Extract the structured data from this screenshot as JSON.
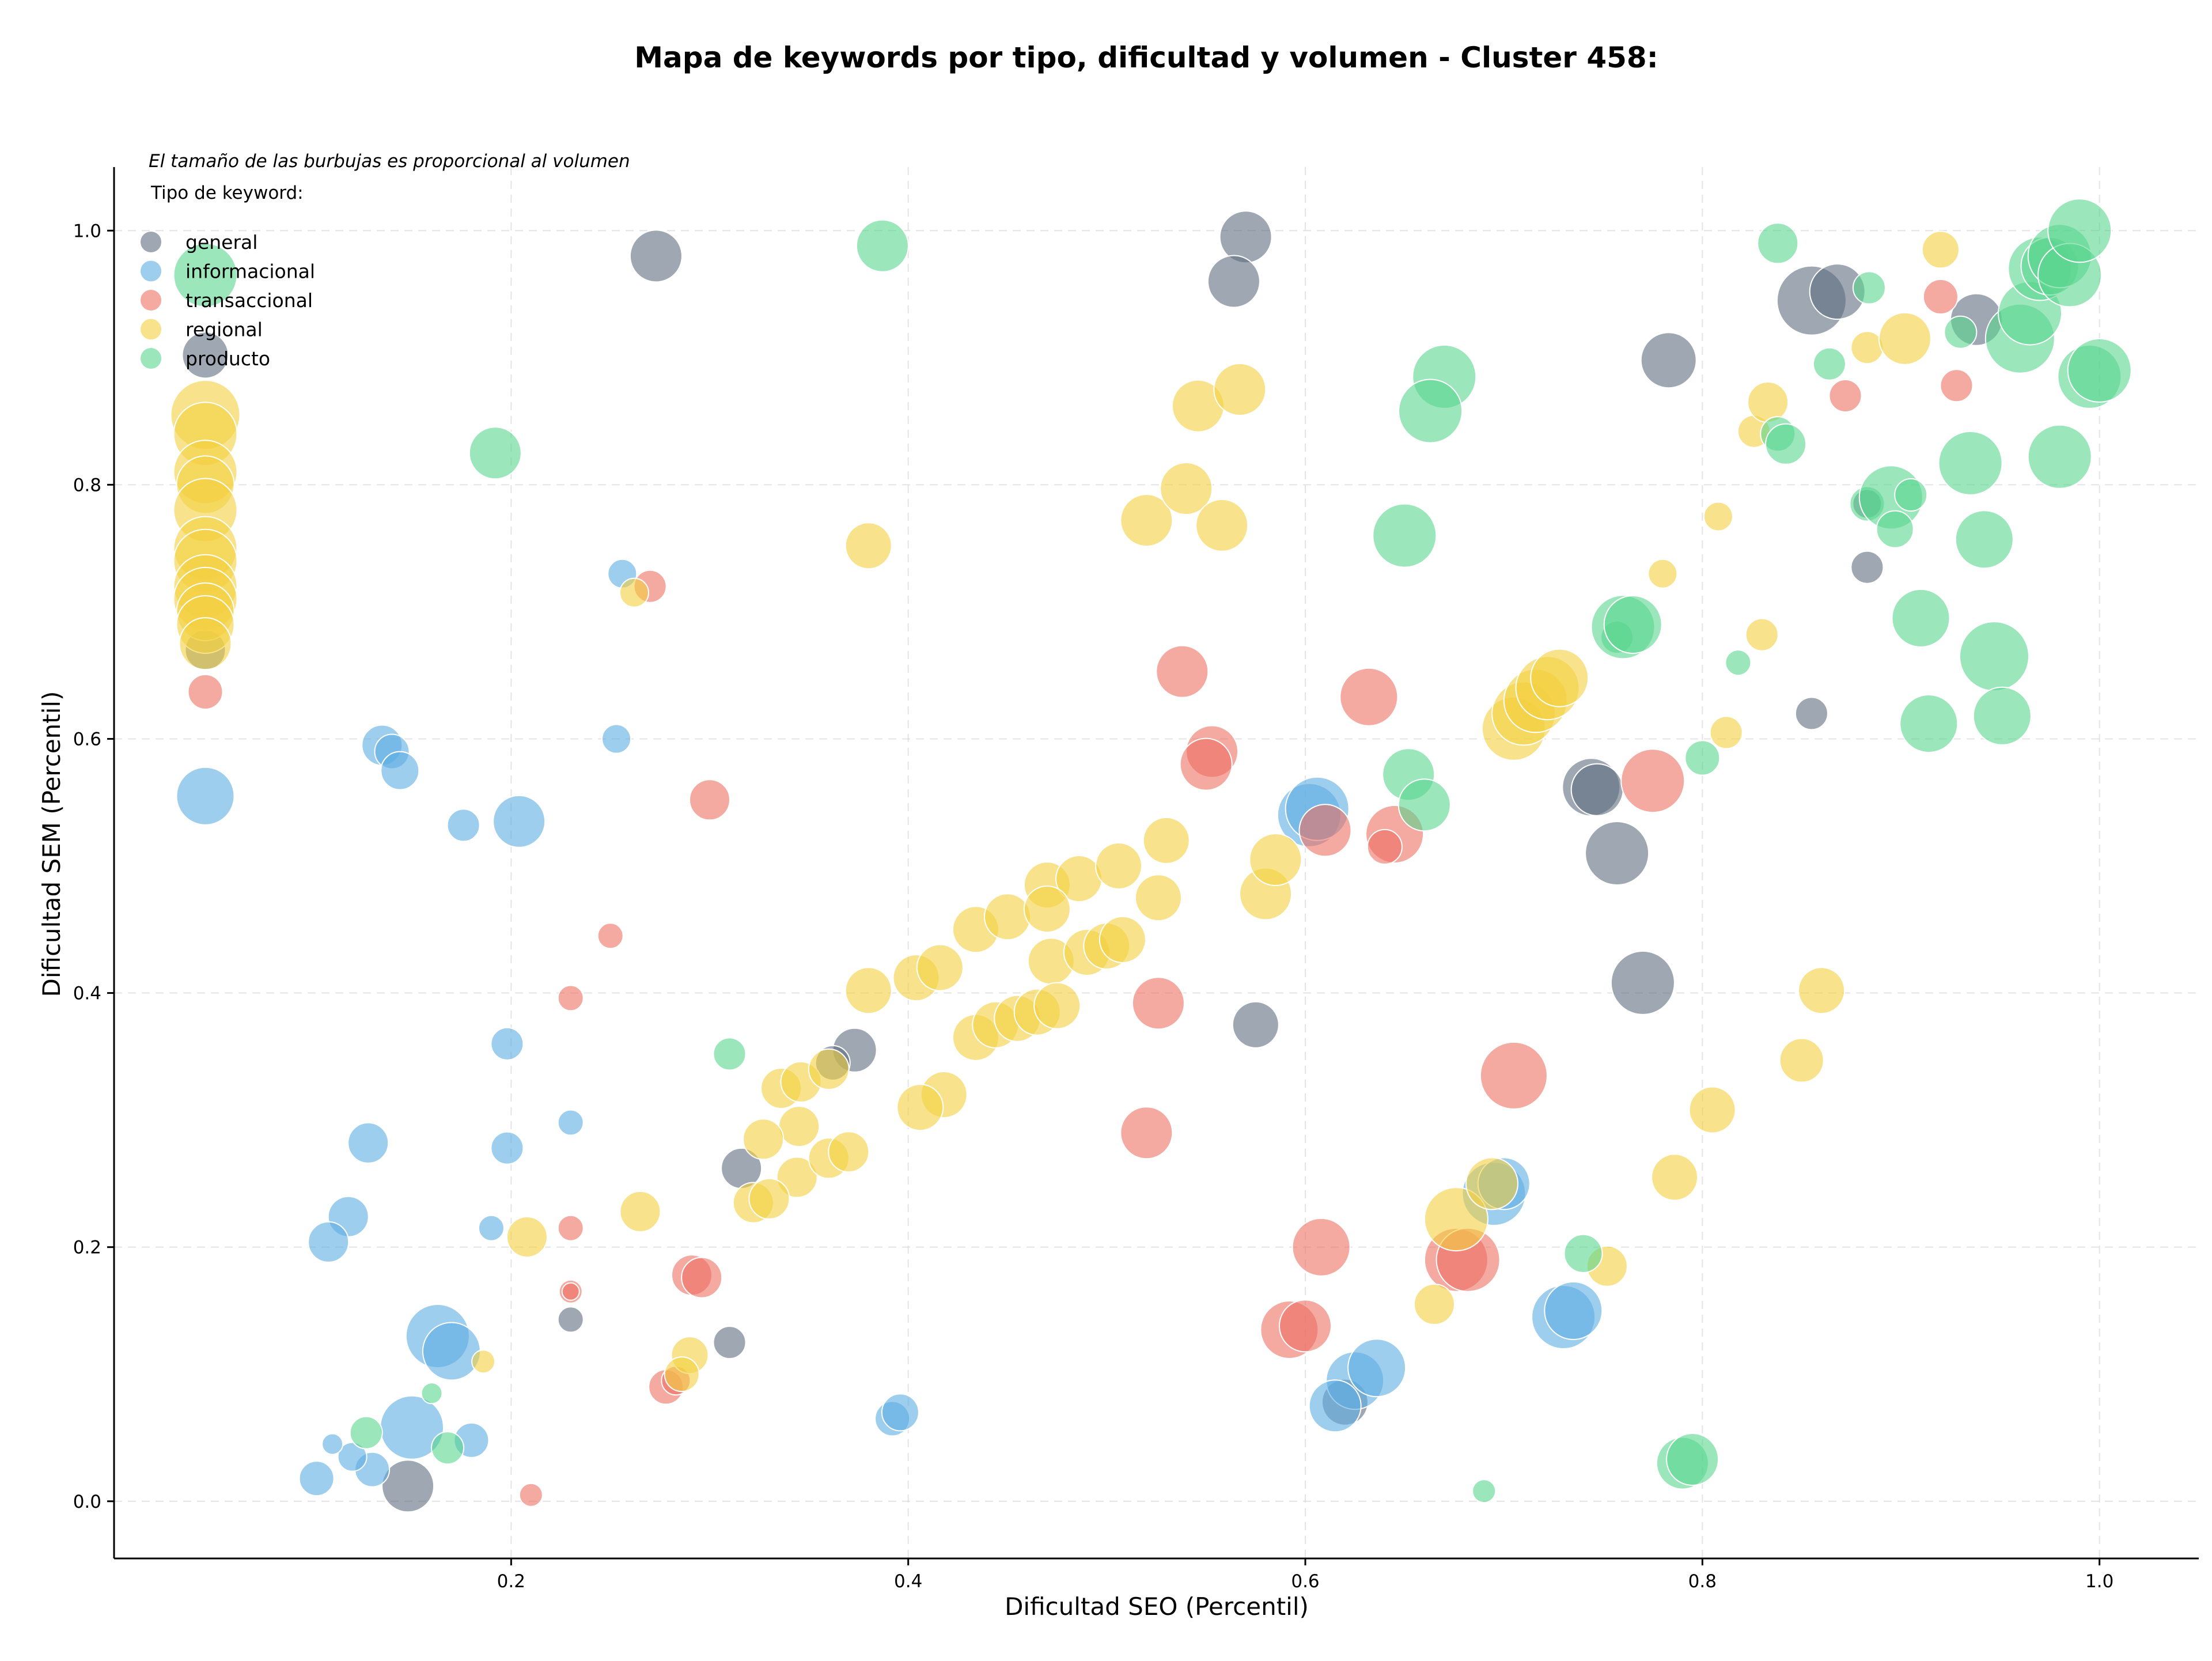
{
  "chart_data": {
    "type": "scatter",
    "title": "Mapa de keywords por tipo, dificultad y volumen - Cluster 458:",
    "xlabel": "Dificultad SEO (Percentil)",
    "ylabel": "Dificultad SEM (Percentil)",
    "xlim": [
      -0.0,
      1.05
    ],
    "ylim": [
      -0.045,
      1.05
    ],
    "xticks": [
      "0.2",
      "0.4",
      "0.6",
      "0.8",
      "1.0"
    ],
    "yticks": [
      "0.0",
      "0.2",
      "0.4",
      "0.6",
      "0.8",
      "1.0"
    ],
    "grid": true,
    "legend_position": "top-left",
    "note": "El tamaño de las burbujas es proporcional al volumen",
    "legend_title": "Tipo de keyword:",
    "series": [
      {
        "name": "general",
        "color": "#5d6d7e",
        "points": [
          [
            0.273,
            0.98,
            45
          ],
          [
            0.57,
            0.995,
            45
          ],
          [
            0.564,
            0.96,
            45
          ],
          [
            0.046,
            0.902,
            40
          ],
          [
            0.046,
            0.67,
            35
          ],
          [
            0.373,
            0.355,
            38
          ],
          [
            0.362,
            0.345,
            30
          ],
          [
            0.316,
            0.262,
            35
          ],
          [
            0.23,
            0.143,
            22
          ],
          [
            0.31,
            0.125,
            28
          ],
          [
            0.148,
            0.012,
            45
          ],
          [
            0.575,
            0.375,
            40
          ],
          [
            0.744,
            0.562,
            50
          ],
          [
            0.747,
            0.56,
            45
          ],
          [
            0.757,
            0.51,
            55
          ],
          [
            0.77,
            0.408,
            55
          ],
          [
            0.783,
            0.898,
            48
          ],
          [
            0.855,
            0.945,
            60
          ],
          [
            0.868,
            0.952,
            48
          ],
          [
            0.938,
            0.93,
            45
          ],
          [
            0.883,
            0.785,
            25
          ],
          [
            0.883,
            0.735,
            28
          ],
          [
            0.855,
            0.62,
            28
          ],
          [
            0.62,
            0.078,
            40
          ]
        ]
      },
      {
        "name": "informacional",
        "color": "#5dade2",
        "points": [
          [
            0.046,
            0.555,
            50
          ],
          [
            0.135,
            0.595,
            35
          ],
          [
            0.14,
            0.59,
            30
          ],
          [
            0.144,
            0.575,
            33
          ],
          [
            0.176,
            0.532,
            28
          ],
          [
            0.204,
            0.535,
            45
          ],
          [
            0.256,
            0.73,
            25
          ],
          [
            0.253,
            0.6,
            25
          ],
          [
            0.198,
            0.36,
            28
          ],
          [
            0.198,
            0.278,
            28
          ],
          [
            0.23,
            0.298,
            22
          ],
          [
            0.19,
            0.215,
            22
          ],
          [
            0.128,
            0.282,
            35
          ],
          [
            0.118,
            0.224,
            35
          ],
          [
            0.108,
            0.204,
            35
          ],
          [
            0.163,
            0.13,
            55
          ],
          [
            0.17,
            0.118,
            50
          ],
          [
            0.15,
            0.058,
            55
          ],
          [
            0.18,
            0.048,
            30
          ],
          [
            0.13,
            0.025,
            30
          ],
          [
            0.12,
            0.035,
            25
          ],
          [
            0.102,
            0.018,
            30
          ],
          [
            0.11,
            0.045,
            18
          ],
          [
            0.392,
            0.065,
            30
          ],
          [
            0.396,
            0.07,
            32
          ],
          [
            0.602,
            0.54,
            55
          ],
          [
            0.606,
            0.545,
            55
          ],
          [
            0.625,
            0.095,
            50
          ],
          [
            0.636,
            0.105,
            50
          ],
          [
            0.615,
            0.075,
            45
          ],
          [
            0.695,
            0.242,
            55
          ],
          [
            0.7,
            0.25,
            45
          ],
          [
            0.73,
            0.145,
            55
          ],
          [
            0.735,
            0.15,
            50
          ]
        ]
      },
      {
        "name": "transaccional",
        "color": "#ec7063",
        "points": [
          [
            0.046,
            0.637,
            30
          ],
          [
            0.27,
            0.72,
            28
          ],
          [
            0.3,
            0.552,
            35
          ],
          [
            0.23,
            0.396,
            22
          ],
          [
            0.25,
            0.445,
            22
          ],
          [
            0.23,
            0.215,
            22
          ],
          [
            0.23,
            0.165,
            20
          ],
          [
            0.23,
            0.165,
            15
          ],
          [
            0.21,
            0.005,
            20
          ],
          [
            0.291,
            0.178,
            35
          ],
          [
            0.296,
            0.176,
            35
          ],
          [
            0.278,
            0.09,
            30
          ],
          [
            0.283,
            0.095,
            25
          ],
          [
            0.538,
            0.653,
            45
          ],
          [
            0.553,
            0.59,
            45
          ],
          [
            0.55,
            0.58,
            45
          ],
          [
            0.526,
            0.392,
            45
          ],
          [
            0.52,
            0.29,
            45
          ],
          [
            0.632,
            0.633,
            50
          ],
          [
            0.61,
            0.528,
            45
          ],
          [
            0.645,
            0.525,
            50
          ],
          [
            0.64,
            0.515,
            30
          ],
          [
            0.608,
            0.2,
            50
          ],
          [
            0.592,
            0.135,
            50
          ],
          [
            0.6,
            0.138,
            45
          ],
          [
            0.705,
            0.335,
            58
          ],
          [
            0.676,
            0.19,
            55
          ],
          [
            0.682,
            0.19,
            55
          ],
          [
            0.775,
            0.567,
            55
          ],
          [
            0.92,
            0.948,
            30
          ],
          [
            0.928,
            0.878,
            28
          ],
          [
            0.872,
            0.87,
            28
          ]
        ]
      },
      {
        "name": "regional",
        "color": "#f4d03f",
        "points": [
          [
            0.046,
            0.855,
            60
          ],
          [
            0.046,
            0.84,
            55
          ],
          [
            0.046,
            0.81,
            55
          ],
          [
            0.046,
            0.8,
            50
          ],
          [
            0.046,
            0.78,
            55
          ],
          [
            0.046,
            0.75,
            55
          ],
          [
            0.046,
            0.74,
            55
          ],
          [
            0.046,
            0.72,
            55
          ],
          [
            0.046,
            0.71,
            55
          ],
          [
            0.046,
            0.7,
            50
          ],
          [
            0.046,
            0.69,
            50
          ],
          [
            0.046,
            0.675,
            45
          ],
          [
            0.38,
            0.752,
            40
          ],
          [
            0.262,
            0.715,
            25
          ],
          [
            0.52,
            0.772,
            45
          ],
          [
            0.54,
            0.797,
            45
          ],
          [
            0.546,
            0.862,
            45
          ],
          [
            0.567,
            0.875,
            45
          ],
          [
            0.558,
            0.768,
            45
          ],
          [
            0.38,
            0.402,
            40
          ],
          [
            0.404,
            0.412,
            40
          ],
          [
            0.416,
            0.42,
            40
          ],
          [
            0.418,
            0.32,
            40
          ],
          [
            0.406,
            0.31,
            40
          ],
          [
            0.434,
            0.45,
            40
          ],
          [
            0.45,
            0.46,
            40
          ],
          [
            0.47,
            0.485,
            40
          ],
          [
            0.486,
            0.49,
            40
          ],
          [
            0.47,
            0.466,
            40
          ],
          [
            0.472,
            0.425,
            40
          ],
          [
            0.49,
            0.432,
            40
          ],
          [
            0.5,
            0.437,
            40
          ],
          [
            0.508,
            0.442,
            40
          ],
          [
            0.506,
            0.5,
            40
          ],
          [
            0.53,
            0.52,
            40
          ],
          [
            0.526,
            0.475,
            40
          ],
          [
            0.58,
            0.478,
            45
          ],
          [
            0.585,
            0.505,
            45
          ],
          [
            0.434,
            0.365,
            40
          ],
          [
            0.444,
            0.375,
            40
          ],
          [
            0.455,
            0.38,
            40
          ],
          [
            0.465,
            0.385,
            40
          ],
          [
            0.475,
            0.39,
            40
          ],
          [
            0.336,
            0.325,
            35
          ],
          [
            0.346,
            0.33,
            35
          ],
          [
            0.36,
            0.34,
            35
          ],
          [
            0.345,
            0.295,
            35
          ],
          [
            0.327,
            0.285,
            35
          ],
          [
            0.344,
            0.255,
            35
          ],
          [
            0.36,
            0.27,
            35
          ],
          [
            0.37,
            0.275,
            35
          ],
          [
            0.322,
            0.235,
            35
          ],
          [
            0.33,
            0.238,
            35
          ],
          [
            0.265,
            0.228,
            35
          ],
          [
            0.208,
            0.208,
            35
          ],
          [
            0.29,
            0.115,
            32
          ],
          [
            0.286,
            0.1,
            30
          ],
          [
            0.186,
            0.11,
            20
          ],
          [
            0.705,
            0.608,
            55
          ],
          [
            0.71,
            0.62,
            55
          ],
          [
            0.716,
            0.63,
            55
          ],
          [
            0.722,
            0.64,
            55
          ],
          [
            0.728,
            0.648,
            50
          ],
          [
            0.676,
            0.222,
            55
          ],
          [
            0.694,
            0.25,
            45
          ],
          [
            0.665,
            0.155,
            35
          ],
          [
            0.752,
            0.185,
            35
          ],
          [
            0.786,
            0.255,
            40
          ],
          [
            0.805,
            0.308,
            40
          ],
          [
            0.85,
            0.347,
            38
          ],
          [
            0.86,
            0.402,
            40
          ],
          [
            0.78,
            0.73,
            25
          ],
          [
            0.808,
            0.775,
            25
          ],
          [
            0.812,
            0.605,
            28
          ],
          [
            0.83,
            0.682,
            28
          ],
          [
            0.826,
            0.842,
            28
          ],
          [
            0.833,
            0.865,
            35
          ],
          [
            0.883,
            0.908,
            28
          ],
          [
            0.902,
            0.915,
            45
          ],
          [
            0.92,
            0.985,
            32
          ]
        ]
      },
      {
        "name": "producto",
        "color": "#58d68d",
        "points": [
          [
            0.046,
            0.965,
            55
          ],
          [
            0.387,
            0.988,
            45
          ],
          [
            0.192,
            0.825,
            45
          ],
          [
            0.31,
            0.352,
            28
          ],
          [
            0.16,
            0.085,
            18
          ],
          [
            0.168,
            0.042,
            28
          ],
          [
            0.127,
            0.054,
            28
          ],
          [
            0.67,
            0.885,
            55
          ],
          [
            0.663,
            0.858,
            55
          ],
          [
            0.65,
            0.76,
            55
          ],
          [
            0.652,
            0.572,
            45
          ],
          [
            0.66,
            0.548,
            45
          ],
          [
            0.757,
            0.68,
            28
          ],
          [
            0.76,
            0.688,
            55
          ],
          [
            0.765,
            0.69,
            50
          ],
          [
            0.74,
            0.195,
            33
          ],
          [
            0.69,
            0.008,
            20
          ],
          [
            0.79,
            0.03,
            45
          ],
          [
            0.795,
            0.033,
            45
          ],
          [
            0.8,
            0.585,
            30
          ],
          [
            0.818,
            0.66,
            22
          ],
          [
            0.838,
            0.99,
            35
          ],
          [
            0.838,
            0.84,
            30
          ],
          [
            0.842,
            0.832,
            35
          ],
          [
            0.864,
            0.895,
            28
          ],
          [
            0.884,
            0.955,
            28
          ],
          [
            0.883,
            0.785,
            30
          ],
          [
            0.895,
            0.79,
            55
          ],
          [
            0.897,
            0.765,
            32
          ],
          [
            0.905,
            0.792,
            28
          ],
          [
            0.93,
            0.92,
            28
          ],
          [
            0.935,
            0.817,
            55
          ],
          [
            0.91,
            0.695,
            50
          ],
          [
            0.942,
            0.757,
            50
          ],
          [
            0.947,
            0.665,
            60
          ],
          [
            0.951,
            0.618,
            50
          ],
          [
            0.914,
            0.612,
            50
          ],
          [
            0.96,
            0.915,
            60
          ],
          [
            0.965,
            0.935,
            55
          ],
          [
            0.97,
            0.97,
            55
          ],
          [
            0.975,
            0.972,
            50
          ],
          [
            0.98,
            0.98,
            55
          ],
          [
            0.985,
            0.965,
            55
          ],
          [
            0.99,
            1.0,
            55
          ],
          [
            0.98,
            0.822,
            55
          ],
          [
            0.995,
            0.885,
            55
          ],
          [
            1.0,
            0.89,
            55
          ]
        ]
      }
    ]
  }
}
